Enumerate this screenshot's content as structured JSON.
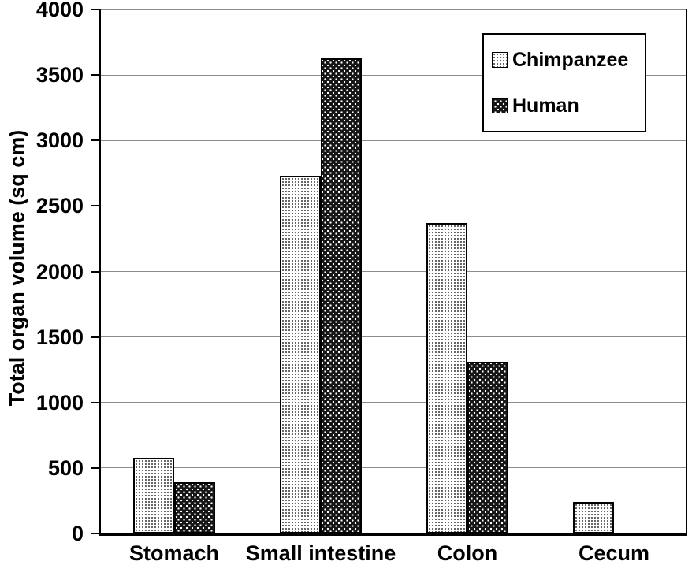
{
  "figure": {
    "background": "#ffffff"
  },
  "chart_data": {
    "type": "bar",
    "title": "",
    "categories": [
      "Stomach",
      "Small intestine",
      "Colon",
      "Cecum"
    ],
    "series": [
      {
        "name": "Chimpanzee",
        "pattern": "light-dots",
        "values": [
          580,
          2730,
          2370,
          240
        ]
      },
      {
        "name": "Human",
        "pattern": "dark-dots",
        "values": [
          390,
          3630,
          1310,
          0
        ]
      }
    ],
    "xlabel": "",
    "ylabel": "Total organ volume (sq cm)",
    "ylim": [
      0,
      4000
    ],
    "ytick_step": 500,
    "yticks": [
      0,
      500,
      1000,
      1500,
      2000,
      2500,
      3000,
      3500,
      4000
    ],
    "grid": true,
    "legend": {
      "position": "top-right",
      "entries": [
        "Chimpanzee",
        "Human"
      ]
    }
  },
  "colors": {
    "axis": "#000000",
    "grid": "#8c8c8c",
    "text": "#000000",
    "bar_light_bg": "#ffffff",
    "bar_dark_bg": "#161616"
  }
}
